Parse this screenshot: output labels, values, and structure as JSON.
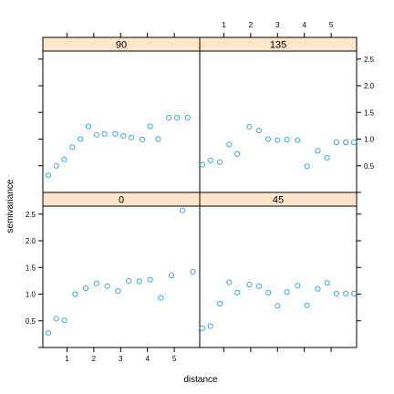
{
  "chart_data": {
    "type": "scatter",
    "layout": "lattice 2x2 panels",
    "xlabel": "distance",
    "ylabel": "semivariance",
    "xlim": [
      0.1,
      5.95
    ],
    "ylim": [
      0,
      2.65
    ],
    "xticks": [
      1,
      2,
      3,
      4,
      5
    ],
    "yticks": [
      0.5,
      1.0,
      1.5,
      2.0,
      2.5
    ],
    "ytick_labels": [
      "0.5",
      "1.0",
      "1.5",
      "2.0",
      "2.5"
    ],
    "point_color": "#3fa9df",
    "strip_color": "#ffe5cc",
    "panels": [
      {
        "label": "90",
        "x": [
          0.3,
          0.6,
          0.9,
          1.2,
          1.5,
          1.8,
          2.1,
          2.4,
          2.8,
          3.1,
          3.4,
          3.8,
          4.1,
          4.4,
          4.8,
          5.1,
          5.5
        ],
        "y": [
          0.32,
          0.5,
          0.62,
          0.85,
          1.0,
          1.24,
          1.08,
          1.1,
          1.1,
          1.06,
          1.03,
          0.99,
          1.24,
          1.0,
          1.4,
          1.4,
          1.4
        ]
      },
      {
        "label": "135",
        "x": [
          0.2,
          0.5,
          0.85,
          1.2,
          1.5,
          1.95,
          2.3,
          2.65,
          3.0,
          3.35,
          3.75,
          4.1,
          4.5,
          4.85,
          5.2,
          5.55,
          5.85
        ],
        "y": [
          0.52,
          0.6,
          0.57,
          0.9,
          0.72,
          1.23,
          1.16,
          1.0,
          0.98,
          0.99,
          0.98,
          0.49,
          0.78,
          0.65,
          0.94,
          0.94,
          0.94
        ]
      },
      {
        "label": "0",
        "x": [
          0.3,
          0.6,
          0.9,
          1.3,
          1.7,
          2.1,
          2.5,
          2.9,
          3.3,
          3.7,
          4.1,
          4.5,
          4.9,
          5.3,
          5.7
        ],
        "y": [
          0.27,
          0.54,
          0.51,
          1.0,
          1.11,
          1.2,
          1.15,
          1.06,
          1.25,
          1.24,
          1.27,
          0.93,
          1.35,
          2.57,
          1.42
        ]
      },
      {
        "label": "45",
        "x": [
          0.2,
          0.5,
          0.85,
          1.2,
          1.5,
          1.95,
          2.3,
          2.65,
          3.0,
          3.35,
          3.75,
          4.1,
          4.5,
          4.85,
          5.2,
          5.55,
          5.85
        ],
        "y": [
          0.36,
          0.4,
          0.82,
          1.22,
          1.03,
          1.18,
          1.15,
          1.03,
          0.78,
          1.04,
          1.16,
          0.79,
          1.1,
          1.21,
          1.01,
          1.01,
          1.01
        ]
      }
    ]
  }
}
